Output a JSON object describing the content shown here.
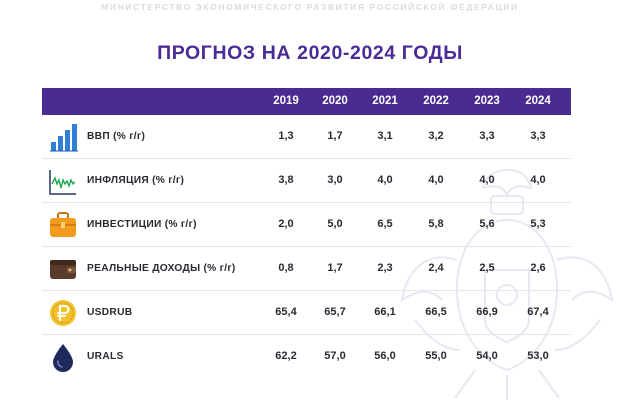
{
  "header": {
    "ministry": "МИНИСТЕРСТВО ЭКОНОМИЧЕСКОГО РАЗВИТИЯ РОССИЙСКОЙ ФЕДЕРАЦИИ",
    "title": "ПРОГНОЗ НА 2020-2024 ГОДЫ"
  },
  "table": {
    "years": [
      "2019",
      "2020",
      "2021",
      "2022",
      "2023",
      "2024"
    ],
    "rows": [
      {
        "icon": "bar-chart-icon",
        "label": "ВВП (% г/г)",
        "values": [
          "1,3",
          "1,7",
          "3,1",
          "3,2",
          "3,3",
          "3,3"
        ]
      },
      {
        "icon": "line-chart-icon",
        "label": "ИНФЛЯЦИЯ (% г/г)",
        "values": [
          "3,8",
          "3,0",
          "4,0",
          "4,0",
          "4,0",
          "4,0"
        ]
      },
      {
        "icon": "briefcase-icon",
        "label": "ИНВЕСТИЦИИ (% г/г)",
        "values": [
          "2,0",
          "5,0",
          "6,5",
          "5,8",
          "5,6",
          "5,3"
        ]
      },
      {
        "icon": "wallet-icon",
        "label": "РЕАЛЬНЫЕ ДОХОДЫ (% г/г)",
        "values": [
          "0,8",
          "1,7",
          "2,3",
          "2,4",
          "2,5",
          "2,6"
        ]
      },
      {
        "icon": "ruble-coin-icon",
        "label": "USDRUB",
        "values": [
          "65,4",
          "65,7",
          "66,1",
          "66,5",
          "66,9",
          "67,4"
        ]
      },
      {
        "icon": "oil-drop-icon",
        "label": "URALS",
        "values": [
          "62,2",
          "57,0",
          "56,0",
          "55,0",
          "54,0",
          "53,0"
        ]
      }
    ]
  },
  "colors": {
    "header_bg": "#4a2b92",
    "title": "#4b2c97",
    "icon_blue": "#2f7fd6",
    "icon_orange": "#f29c1f",
    "icon_brown": "#5a3a2a",
    "icon_gold": "#f2c12e",
    "icon_navy": "#1f2a5c"
  }
}
